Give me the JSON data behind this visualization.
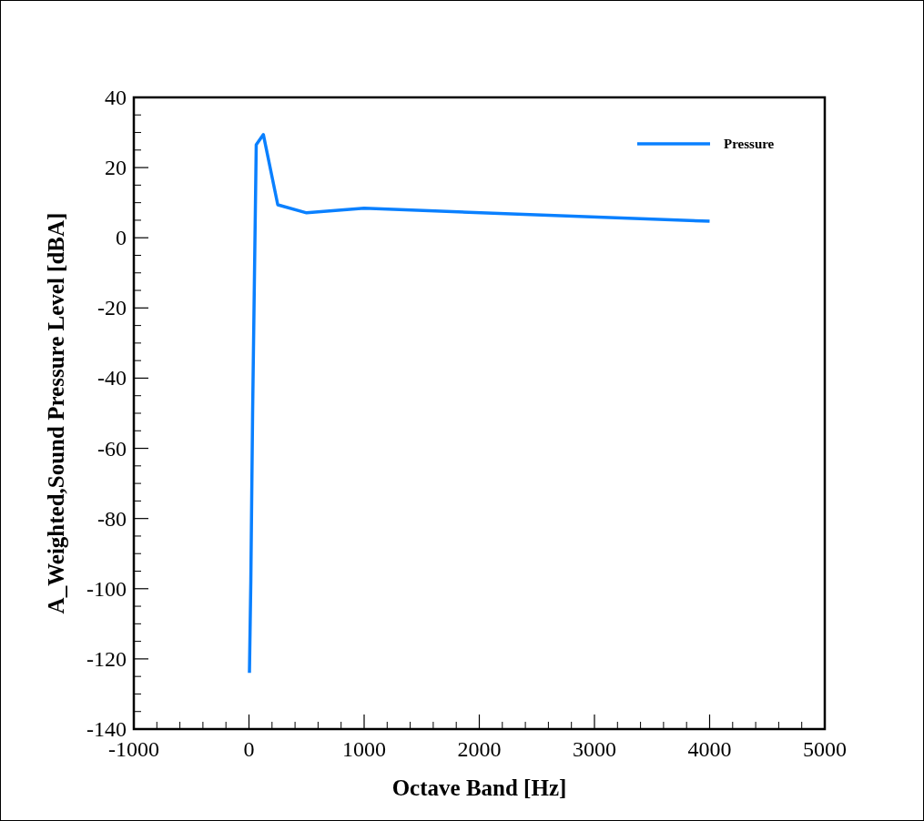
{
  "chart_data": {
    "type": "line",
    "xlabel": "Octave Band [Hz]",
    "ylabel": "A_Weighted,Sound Pressure Level [dBA]",
    "x": [
      4,
      16,
      31.5,
      63,
      125,
      250,
      500,
      1000,
      4000
    ],
    "series": [
      {
        "name": "Pressure",
        "color": "#0a80ff",
        "values": [
          -124,
          -98,
          -50,
          26.5,
          29.4,
          9.4,
          7.1,
          8.4,
          4.7
        ]
      }
    ],
    "xlim": [
      -1000,
      5000
    ],
    "xticks": [
      -1000,
      0,
      1000,
      2000,
      3000,
      4000,
      5000
    ],
    "ylim": [
      -140,
      40
    ],
    "yticks": [
      -140,
      -120,
      -100,
      -80,
      -60,
      -40,
      -20,
      0,
      20,
      40
    ],
    "legend": "top right",
    "grid": false,
    "marker": "none",
    "line_style": "solid"
  }
}
